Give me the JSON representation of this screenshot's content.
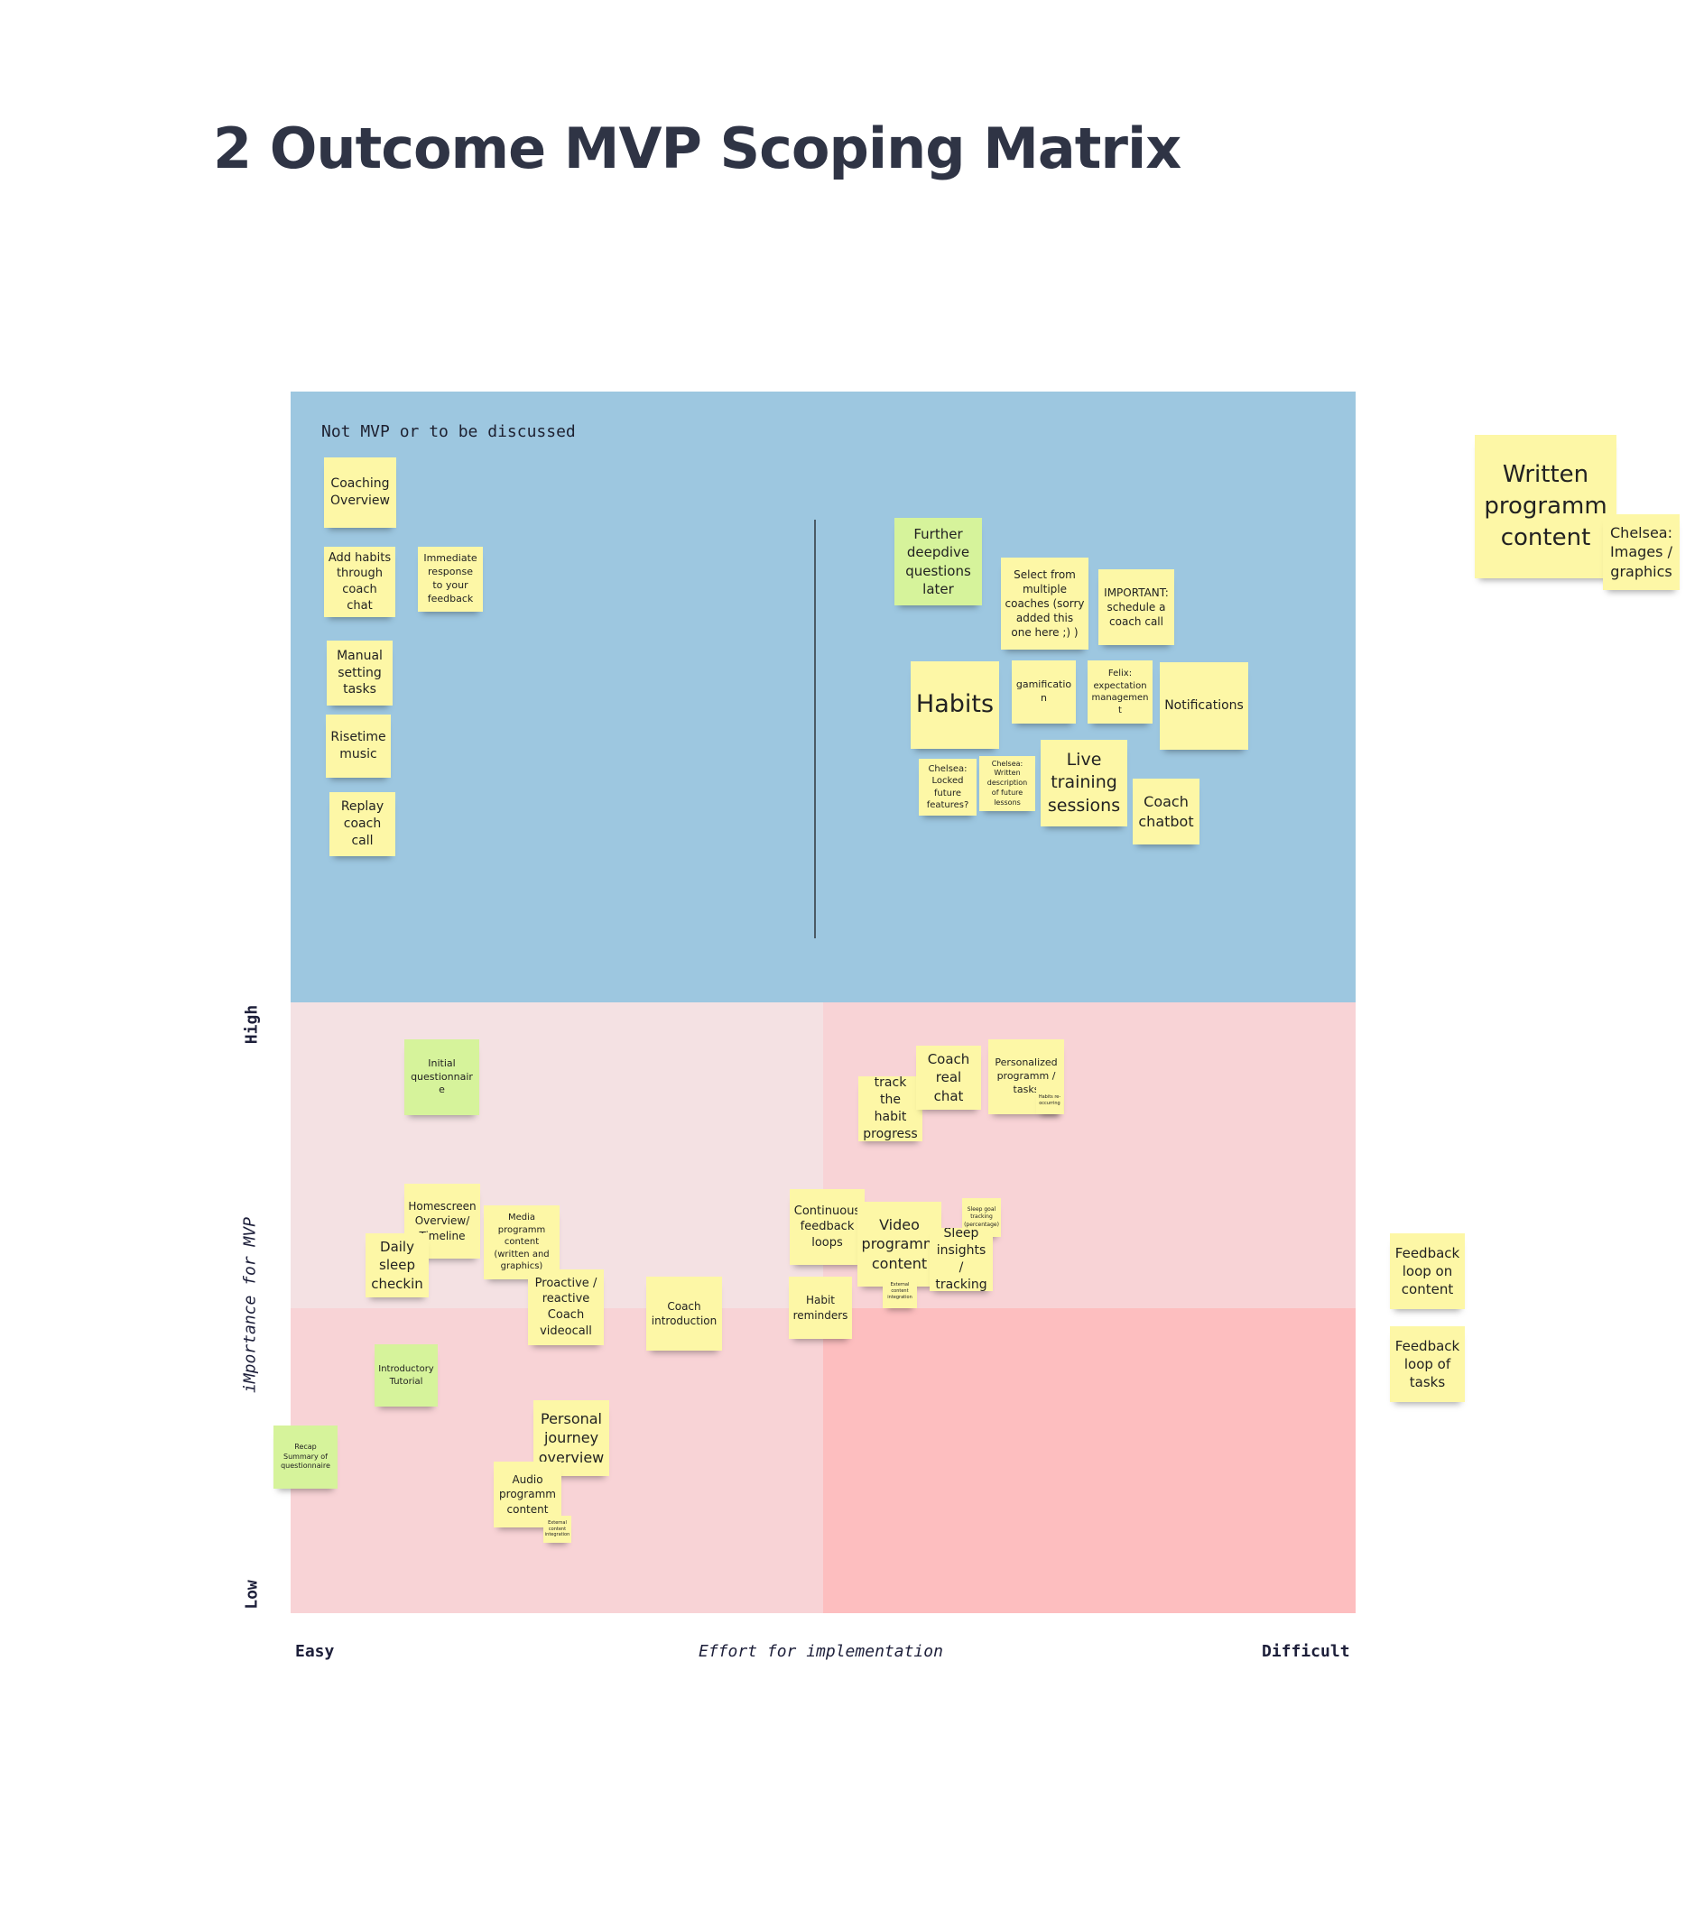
{
  "title": "2 Outcome MVP Scoping Matrix",
  "zone_label": "Not MVP or to be discussed",
  "axes": {
    "y_label": "iMportance for MVP",
    "y_high": "High",
    "y_low": "Low",
    "x_label": "Effort for implementation",
    "x_easy": "Easy",
    "x_difficult": "Difficult"
  },
  "colors": {
    "not_mvp_zone": "#9dc7e0",
    "quadrant_high_easy": "#f4e1e3",
    "quadrant_high_difficult": "#f8d3d6",
    "quadrant_low_easy": "#f8d3d6",
    "quadrant_low_difficult": "#fdbebf",
    "sticky_yellow": "#fdf7a6",
    "sticky_green": "#d6f39b",
    "title": "#2f3445"
  },
  "notes": {
    "coaching_overview": "Coaching Overview",
    "add_habits": "Add habits through coach chat",
    "immediate_response": "Immediate response to your feedback",
    "manual_tasks": "Manual setting tasks",
    "risetime_music": "Risetime music",
    "replay_call": "Replay coach call",
    "further_questions": "Further deepdive questions later",
    "select_coaches": "Select from multiple coaches (sorry added this one here ;) )",
    "schedule_call": "IMPORTANT: schedule a coach call",
    "habits": "Habits",
    "gamification": "gamification",
    "felix_expectation": "Felix: expectation management",
    "notifications": "Notifications",
    "locked_features": "Chelsea: Locked future features?",
    "future_lessons": "Chelsea: Written description of future lessons",
    "live_training": "Live training sessions",
    "coach_chatbot": "Coach chatbot",
    "written_content": "Written programm content",
    "chelsea_images": "Chelsea: Images / graphics",
    "initial_questionnaire": "Initial questionnaire",
    "track_habit": "track the habit progress",
    "coach_real_chat": "Coach real chat",
    "personalized_programm": "Personalized programm / tasks",
    "habit_recurring": "Habits re-occurring",
    "homescreen_overview": "Homescreen Overview/ Timeline",
    "daily_checkin": "Daily sleep checkin",
    "media_content": "Media programm content (written and graphics)",
    "proactive_videocall": "Proactive / reactive Coach videocall",
    "coach_introduction": "Coach introduction",
    "continuous_feedback": "Continuous feedback loops",
    "video_content": "Video programm content",
    "sleep_goal": "Sleep goal tracking (percentage)",
    "sleep_insights": "Sleep insights / tracking",
    "external_integration_video": "External content integration",
    "habit_reminders": "Habit reminders",
    "introductory_tutorial": "Introductory Tutorial",
    "recap_summary": "Recap Summary of questionnaire",
    "personal_journey": "Personal journey overview",
    "audio_content": "Audio programm content",
    "external_integration_audio": "External content integration",
    "feedback_content": "Feedback loop on content",
    "feedback_tasks": "Feedback loop of tasks"
  }
}
